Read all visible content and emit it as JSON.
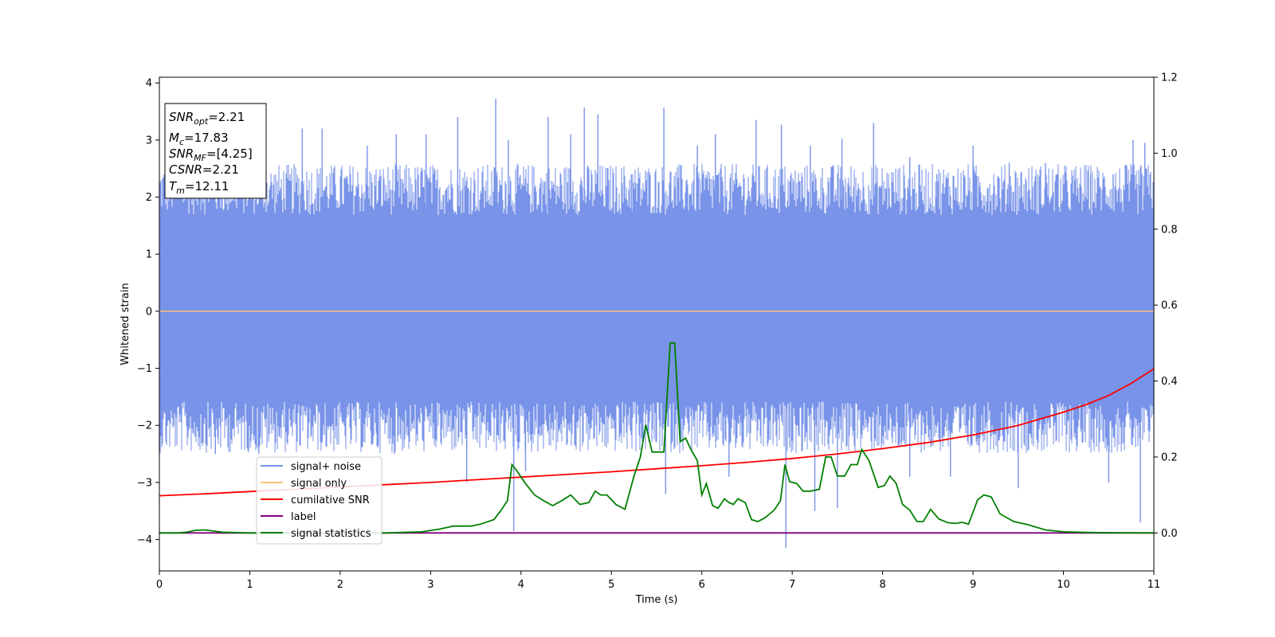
{
  "chart_data": {
    "type": "line",
    "xlabel": "Time (s)",
    "ylabel": "Whitened strain",
    "xlim": [
      0,
      11
    ],
    "ylim": [
      -4.55,
      4.1
    ],
    "y2lim": [
      -0.1,
      1.2
    ],
    "x_ticks": [
      0,
      1,
      2,
      3,
      4,
      5,
      6,
      7,
      8,
      9,
      10,
      11
    ],
    "y_ticks": [
      -4,
      -3,
      -2,
      -1,
      0,
      1,
      2,
      3,
      4
    ],
    "y2_ticks": [
      "0.0",
      "0.2",
      "0.4",
      "0.6",
      "0.8",
      "1.0",
      "1.2"
    ],
    "legend_position": "lower-left",
    "colors": {
      "noise": "#7893e8",
      "signal": "#ffc07a",
      "csnr": "#ff0000",
      "label": "#800080",
      "stats": "#008000"
    },
    "series": [
      {
        "name": "signal+ noise",
        "axis": "left",
        "kind": "noise_band",
        "band_top_typical": 2.0,
        "band_bottom_typical": -1.9,
        "spikes": [
          {
            "x": 0.45,
            "y": 2.1
          },
          {
            "x": 1.0,
            "y": 2.2
          },
          {
            "x": 1.58,
            "y": 3.2
          },
          {
            "x": 1.8,
            "y": 3.2
          },
          {
            "x": 2.3,
            "y": 2.9
          },
          {
            "x": 2.62,
            "y": 3.1
          },
          {
            "x": 2.95,
            "y": 3.1
          },
          {
            "x": 3.3,
            "y": 3.4
          },
          {
            "x": 3.72,
            "y": 3.72
          },
          {
            "x": 3.86,
            "y": 3.0
          },
          {
            "x": 4.3,
            "y": 3.4
          },
          {
            "x": 4.55,
            "y": 3.1
          },
          {
            "x": 4.7,
            "y": 3.57
          },
          {
            "x": 4.85,
            "y": 3.45
          },
          {
            "x": 5.22,
            "y": 2.4
          },
          {
            "x": 5.58,
            "y": 3.57
          },
          {
            "x": 5.95,
            "y": 2.9
          },
          {
            "x": 6.15,
            "y": 3.1
          },
          {
            "x": 6.6,
            "y": 3.35
          },
          {
            "x": 6.88,
            "y": 3.27
          },
          {
            "x": 7.2,
            "y": 2.9
          },
          {
            "x": 7.55,
            "y": 3.02
          },
          {
            "x": 7.9,
            "y": 3.3
          },
          {
            "x": 8.3,
            "y": 2.7
          },
          {
            "x": 8.6,
            "y": 2.4
          },
          {
            "x": 9.0,
            "y": 2.9
          },
          {
            "x": 9.4,
            "y": 2.6
          },
          {
            "x": 9.8,
            "y": 2.6
          },
          {
            "x": 10.3,
            "y": 2.4
          },
          {
            "x": 10.55,
            "y": 2.4
          },
          {
            "x": 10.77,
            "y": 3.0
          },
          {
            "x": 10.9,
            "y": 2.95
          },
          {
            "x": 0.62,
            "y": -2.5
          },
          {
            "x": 1.1,
            "y": -2.5
          },
          {
            "x": 1.8,
            "y": -2.3
          },
          {
            "x": 2.6,
            "y": -2.5
          },
          {
            "x": 3.4,
            "y": -3.0
          },
          {
            "x": 3.92,
            "y": -3.85
          },
          {
            "x": 4.05,
            "y": -2.8
          },
          {
            "x": 5.6,
            "y": -3.2
          },
          {
            "x": 6.3,
            "y": -2.9
          },
          {
            "x": 6.93,
            "y": -4.15
          },
          {
            "x": 7.25,
            "y": -3.5
          },
          {
            "x": 7.5,
            "y": -3.45
          },
          {
            "x": 8.3,
            "y": -2.9
          },
          {
            "x": 8.75,
            "y": -2.9
          },
          {
            "x": 9.5,
            "y": -3.1
          },
          {
            "x": 10.5,
            "y": -3.0
          },
          {
            "x": 10.85,
            "y": -3.7
          }
        ]
      },
      {
        "name": "signal only",
        "axis": "left",
        "x": [
          0,
          11
        ],
        "y": [
          0,
          0
        ]
      },
      {
        "name": "cumilative SNR",
        "axis": "right",
        "x": [
          0,
          0.5,
          1,
          1.5,
          2,
          2.5,
          3,
          3.5,
          4,
          4.5,
          5,
          5.5,
          6,
          6.5,
          7,
          7.5,
          8,
          8.5,
          9,
          9.5,
          10,
          10.25,
          10.5,
          10.75,
          11
        ],
        "y": [
          0.098,
          0.103,
          0.109,
          0.115,
          0.121,
          0.127,
          0.133,
          0.14,
          0.147,
          0.154,
          0.161,
          0.169,
          0.177,
          0.186,
          0.196,
          0.208,
          0.222,
          0.238,
          0.258,
          0.283,
          0.318,
          0.338,
          0.362,
          0.394,
          0.432
        ]
      },
      {
        "name": "label",
        "axis": "right",
        "x": [
          0,
          11
        ],
        "y": [
          0,
          0
        ]
      },
      {
        "name": "signal statistics",
        "axis": "right",
        "x": [
          0,
          0.2,
          0.3,
          0.4,
          0.5,
          0.7,
          1.0,
          1.5,
          2.0,
          2.5,
          2.9,
          3.1,
          3.25,
          3.35,
          3.45,
          3.55,
          3.7,
          3.78,
          3.85,
          3.9,
          3.95,
          4.05,
          4.15,
          4.25,
          4.35,
          4.45,
          4.55,
          4.65,
          4.75,
          4.82,
          4.88,
          4.95,
          5.05,
          5.15,
          5.25,
          5.32,
          5.38,
          5.45,
          5.52,
          5.58,
          5.65,
          5.7,
          5.76,
          5.82,
          5.88,
          5.95,
          6.0,
          6.05,
          6.12,
          6.18,
          6.25,
          6.3,
          6.35,
          6.4,
          6.48,
          6.55,
          6.62,
          6.7,
          6.8,
          6.87,
          6.92,
          6.97,
          7.05,
          7.12,
          7.2,
          7.3,
          7.37,
          7.43,
          7.5,
          7.58,
          7.65,
          7.72,
          7.77,
          7.85,
          7.95,
          8.02,
          8.08,
          8.15,
          8.22,
          8.3,
          8.38,
          8.45,
          8.53,
          8.62,
          8.72,
          8.8,
          8.88,
          8.95,
          9.05,
          9.12,
          9.2,
          9.3,
          9.45,
          9.6,
          9.8,
          10.0,
          10.3,
          11.0
        ],
        "y": [
          0.0,
          0.0,
          0.002,
          0.007,
          0.008,
          0.002,
          0.0,
          0.0,
          0.0,
          0.0,
          0.003,
          0.01,
          0.018,
          0.018,
          0.018,
          0.023,
          0.035,
          0.06,
          0.085,
          0.18,
          0.165,
          0.13,
          0.1,
          0.085,
          0.072,
          0.085,
          0.1,
          0.075,
          0.08,
          0.11,
          0.1,
          0.1,
          0.075,
          0.062,
          0.15,
          0.2,
          0.285,
          0.213,
          0.213,
          0.213,
          0.5,
          0.5,
          0.24,
          0.25,
          0.22,
          0.19,
          0.1,
          0.13,
          0.072,
          0.065,
          0.09,
          0.08,
          0.075,
          0.09,
          0.08,
          0.035,
          0.03,
          0.04,
          0.06,
          0.085,
          0.18,
          0.135,
          0.13,
          0.11,
          0.11,
          0.115,
          0.2,
          0.2,
          0.15,
          0.15,
          0.18,
          0.18,
          0.22,
          0.19,
          0.12,
          0.125,
          0.15,
          0.13,
          0.075,
          0.06,
          0.03,
          0.03,
          0.062,
          0.037,
          0.027,
          0.025,
          0.028,
          0.023,
          0.087,
          0.1,
          0.095,
          0.05,
          0.03,
          0.022,
          0.008,
          0.003,
          0.001,
          0.0
        ]
      }
    ],
    "annotation_box": {
      "lines": [
        {
          "main": "SNR",
          "sub": "opt",
          "value": "=2.21"
        },
        {
          "main": "M",
          "sub": "c",
          "value": "=17.83"
        },
        {
          "main": "SNR",
          "sub": "MF",
          "value": "=[4.25]"
        },
        {
          "main": "CSNR",
          "sub": "",
          "value": "=2.21"
        },
        {
          "main": "T",
          "sub": "m",
          "value": "=12.11"
        }
      ]
    }
  }
}
